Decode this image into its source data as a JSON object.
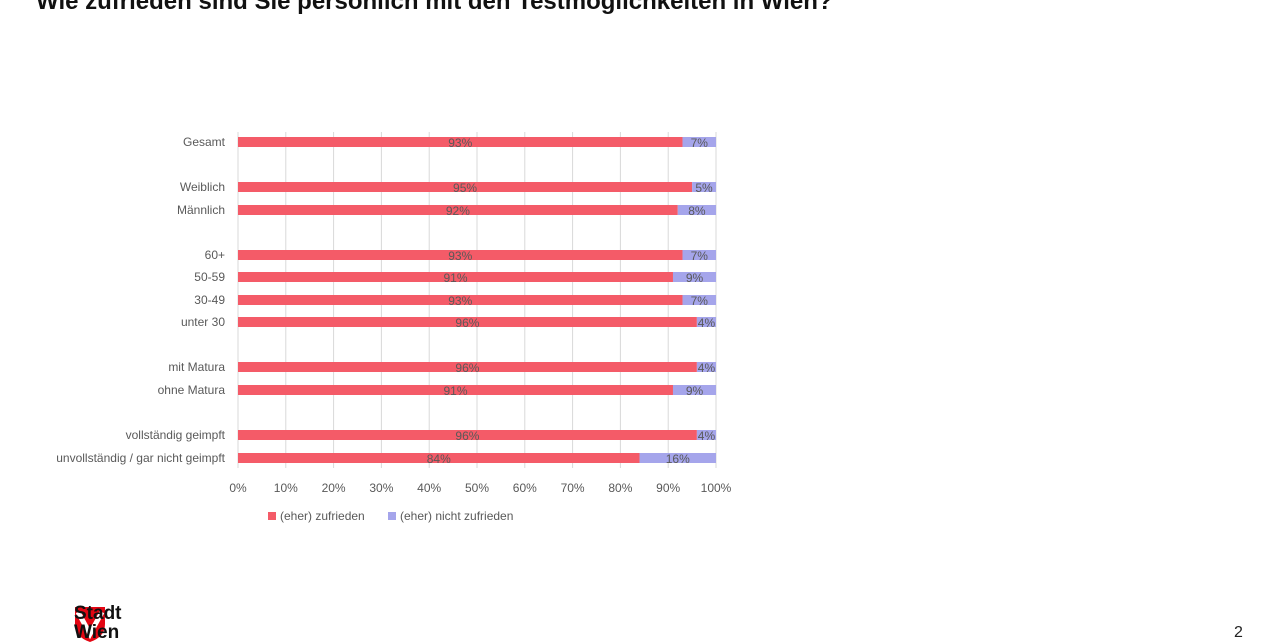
{
  "page": {
    "title": "Wie zufrieden sind Sie persönlich mit den Testmöglichkeiten in Wien?",
    "logo": {
      "line1": "Stadt",
      "line2": "Wien"
    },
    "page_number": "2"
  },
  "colors": {
    "zufrieden": "#f45b68",
    "nicht_zufrieden": "#a5a5eb",
    "grid": "#d9d9d9",
    "axis_text": "#595959",
    "logo_red": "#e30613"
  },
  "chart_data": {
    "type": "bar",
    "orientation": "horizontal",
    "stacked": true,
    "title": "",
    "xlabel": "",
    "ylabel": "",
    "xlim": [
      0,
      100
    ],
    "x_ticks": [
      "0%",
      "10%",
      "20%",
      "30%",
      "40%",
      "50%",
      "60%",
      "70%",
      "80%",
      "90%",
      "100%"
    ],
    "grid": true,
    "legend_position": "bottom",
    "categories": [
      "Gesamt",
      "Weiblich",
      "Männlich",
      "60+",
      "50-59",
      "30-49",
      "unter 30",
      "mit Matura",
      "ohne Matura",
      "vollständig geimpft",
      "unvollständig / gar nicht geimpft"
    ],
    "series": [
      {
        "name": "(eher) zufrieden",
        "values": [
          93,
          95,
          92,
          93,
          91,
          93,
          96,
          96,
          91,
          96,
          84
        ]
      },
      {
        "name": "(eher) nicht zufrieden",
        "values": [
          7,
          5,
          8,
          7,
          9,
          7,
          4,
          4,
          9,
          4,
          16
        ]
      }
    ]
  }
}
